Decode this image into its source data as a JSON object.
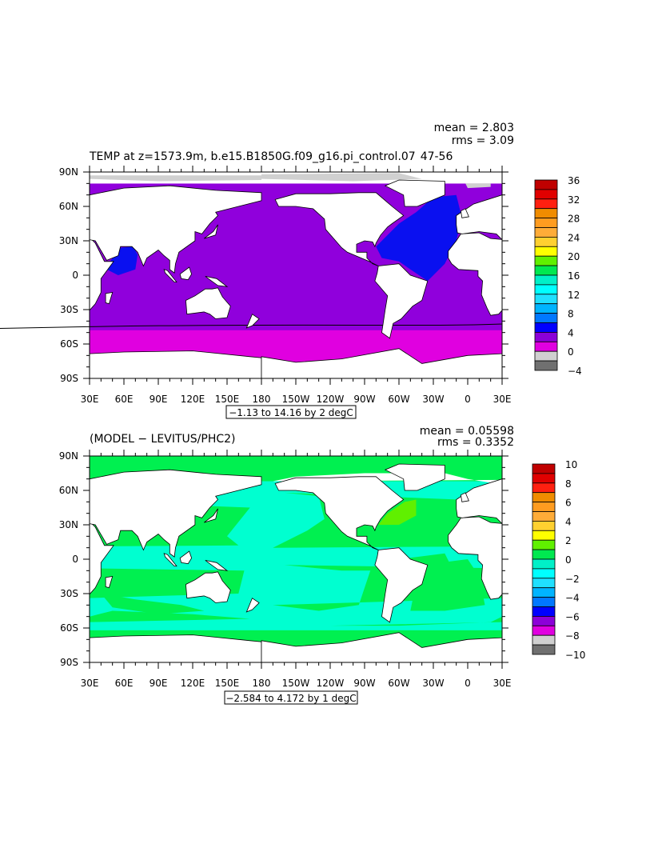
{
  "chart_data": [
    {
      "type": "heatmap",
      "projection": "cylindrical-equidistant",
      "title": "TEMP at z=1573.9m, b.e15.B1850G.f09_g16.pi_control.07",
      "title_suffix": "47-56",
      "mean_label": "mean = 2.803",
      "rms_label": "rms = 3.09",
      "info_label": "−1.13 to 14.16 by 2 degC",
      "x_ticks": [
        "30E",
        "60E",
        "90E",
        "120E",
        "150E",
        "180",
        "150W",
        "120W",
        "90W",
        "60W",
        "30W",
        "0",
        "30E"
      ],
      "y_ticks": [
        "90N",
        "60N",
        "30N",
        "0",
        "30S",
        "60S",
        "90S"
      ],
      "colorbar": {
        "labels": [
          "36",
          "32",
          "28",
          "24",
          "20",
          "16",
          "12",
          "8",
          "4",
          "0",
          "−4"
        ],
        "range": [
          -4,
          36
        ],
        "interval": 2,
        "colors": [
          "#c00000",
          "#e00000",
          "#ff2010",
          "#f08c00",
          "#ff9c20",
          "#ffac38",
          "#ffd030",
          "#ffff00",
          "#60f000",
          "#00e850",
          "#00f0c8",
          "#00ffff",
          "#20e0ff",
          "#00b4ff",
          "#0078ff",
          "#0000ff",
          "#8c00d8",
          "#e000e0",
          "#d0d0d0",
          "#707070"
        ]
      },
      "fields": {
        "base": "#9000dc",
        "southern": "#e000e0",
        "north_atlantic": "#0a10f0",
        "arctic": "#d0d0d0"
      }
    },
    {
      "type": "heatmap",
      "projection": "cylindrical-equidistant",
      "title": "(MODEL − LEVITUS/PHC2)",
      "mean_label": "mean = 0.05598",
      "rms_label": "rms = 0.3352",
      "info_label": "−2.584 to 4.172 by 1 degC",
      "x_ticks": [
        "30E",
        "60E",
        "90E",
        "120E",
        "150E",
        "180",
        "150W",
        "120W",
        "90W",
        "60W",
        "30W",
        "0",
        "30E"
      ],
      "y_ticks": [
        "90N",
        "60N",
        "30N",
        "0",
        "30S",
        "60S",
        "90S"
      ],
      "colorbar": {
        "labels": [
          "10",
          "8",
          "6",
          "4",
          "2",
          "0",
          "−2",
          "−4",
          "−6",
          "−8",
          "−10"
        ],
        "range": [
          -10,
          10
        ],
        "interval": 1,
        "colors": [
          "#c00000",
          "#e00000",
          "#ff2010",
          "#f08c00",
          "#ff9c20",
          "#ffac38",
          "#ffd030",
          "#ffff00",
          "#60f000",
          "#00e850",
          "#00f0c8",
          "#00ffff",
          "#20e0ff",
          "#00b4ff",
          "#0078ff",
          "#0000ff",
          "#8c00d8",
          "#e000e0",
          "#d0d0d0",
          "#707070"
        ]
      },
      "fields": {
        "base": "#00ffd0",
        "positive": "#00f050",
        "north_atlantic": "#60f000"
      }
    }
  ]
}
